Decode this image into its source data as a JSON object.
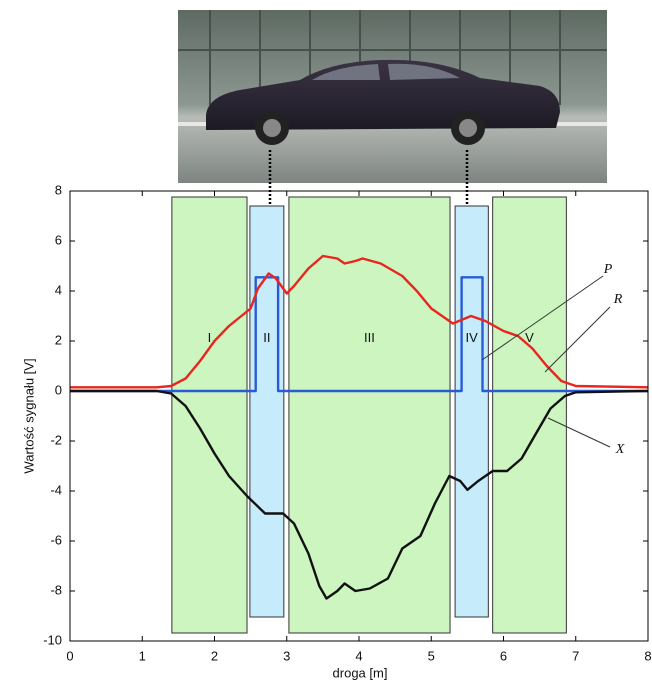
{
  "chart_data": {
    "type": "line",
    "xlabel": "droga  [m]",
    "ylabel": "Wartość sygnału  [V]",
    "xlim": [
      0,
      8
    ],
    "ylim": [
      -10,
      8
    ],
    "xticks": [
      0,
      1,
      2,
      3,
      4,
      5,
      6,
      7,
      8
    ],
    "yticks": [
      -10,
      -8,
      -6,
      -4,
      -2,
      0,
      2,
      4,
      6,
      8
    ],
    "regions": [
      {
        "label": "I",
        "x": [
          1.41,
          2.45
        ],
        "y": [
          -9.68,
          7.76
        ],
        "color": "#ccf5c0"
      },
      {
        "label": "II",
        "x": [
          2.49,
          2.96
        ],
        "y": [
          -9.04,
          7.4
        ],
        "color": "#c6ecfb"
      },
      {
        "label": "III",
        "x": [
          3.03,
          5.26
        ],
        "y": [
          -9.68,
          7.76
        ],
        "color": "#ccf5c0"
      },
      {
        "label": "IV",
        "x": [
          5.33,
          5.79
        ],
        "y": [
          -9.04,
          7.4
        ],
        "color": "#c6ecfb"
      },
      {
        "label": "V",
        "x": [
          5.85,
          6.87
        ],
        "y": [
          -9.68,
          7.76
        ],
        "color": "#ccf5c0"
      }
    ],
    "series": [
      {
        "name": "P",
        "color": "#2a5bd7",
        "x": [
          0,
          2.57,
          2.57,
          2.88,
          2.88,
          5.42,
          5.42,
          5.71,
          5.71,
          8
        ],
        "values": [
          0,
          0,
          4.55,
          4.55,
          0,
          0,
          4.55,
          4.55,
          0,
          0
        ]
      },
      {
        "name": "R",
        "color": "#e8261f",
        "x": [
          0,
          1.2,
          1.4,
          1.6,
          1.8,
          2.0,
          2.2,
          2.5,
          2.6,
          2.75,
          2.85,
          3.0,
          3.1,
          3.3,
          3.5,
          3.7,
          3.8,
          3.95,
          4.05,
          4.3,
          4.6,
          4.8,
          5.0,
          5.3,
          5.55,
          5.75,
          6.0,
          6.2,
          6.4,
          6.6,
          6.8,
          7.0,
          8
        ],
        "values": [
          0.15,
          0.15,
          0.2,
          0.5,
          1.2,
          2.0,
          2.6,
          3.3,
          4.1,
          4.7,
          4.5,
          3.9,
          4.2,
          4.9,
          5.4,
          5.3,
          5.1,
          5.2,
          5.3,
          5.1,
          4.6,
          4.0,
          3.3,
          2.7,
          3.0,
          2.8,
          2.4,
          2.2,
          1.7,
          1.0,
          0.4,
          0.2,
          0.15
        ]
      },
      {
        "name": "X",
        "color": "#111111",
        "x": [
          0,
          1.2,
          1.4,
          1.6,
          1.8,
          2.0,
          2.2,
          2.45,
          2.7,
          2.95,
          3.1,
          3.3,
          3.45,
          3.55,
          3.7,
          3.8,
          3.95,
          4.15,
          4.4,
          4.6,
          4.85,
          5.05,
          5.25,
          5.4,
          5.5,
          5.65,
          5.85,
          6.05,
          6.25,
          6.45,
          6.65,
          6.85,
          7.0,
          8
        ],
        "values": [
          0,
          0,
          -0.1,
          -0.6,
          -1.5,
          -2.5,
          -3.4,
          -4.2,
          -4.9,
          -4.9,
          -5.3,
          -6.5,
          -7.8,
          -8.3,
          -8.0,
          -7.7,
          -8.0,
          -7.9,
          -7.5,
          -6.3,
          -5.8,
          -4.5,
          -3.4,
          -3.6,
          -3.95,
          -3.6,
          -3.2,
          -3.2,
          -2.7,
          -1.7,
          -0.7,
          -0.2,
          -0.05,
          0
        ]
      }
    ]
  }
}
